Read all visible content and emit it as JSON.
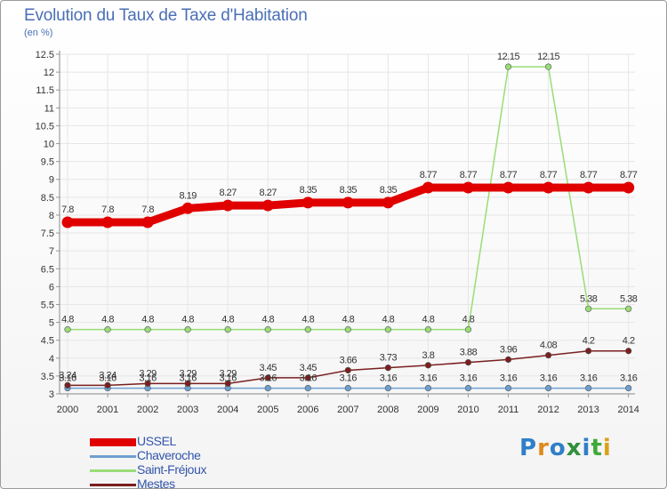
{
  "header": {
    "title": "Evolution du Taux de Taxe d'Habitation",
    "subtitle": "(en %)"
  },
  "colors": {
    "axis_text": "#333333",
    "grid": "#e6e6e6",
    "title": "#4a6fb5"
  },
  "logo": {
    "text": "Proxiti"
  },
  "chart_data": {
    "type": "line",
    "title": "Evolution du Taux de Taxe d'Habitation",
    "ylabel": "(en %)",
    "xlabel": "",
    "categories": [
      "2000",
      "2001",
      "2002",
      "2003",
      "2004",
      "2005",
      "2006",
      "2007",
      "2008",
      "2009",
      "2010",
      "2011",
      "2012",
      "2013",
      "2014"
    ],
    "y_ticks": [
      "3",
      "3.5",
      "4",
      "4.5",
      "5",
      "5.5",
      "6",
      "6.5",
      "7",
      "7.5",
      "8",
      "8.5",
      "9",
      "9.5",
      "10",
      "10.5",
      "11",
      "11.5",
      "12",
      "12.5"
    ],
    "ylim": [
      3,
      12.5
    ],
    "grid": true,
    "legend_position": "bottom-left",
    "series": [
      {
        "name": "USSEL",
        "color": "#e00000",
        "width": 9,
        "values": [
          7.8,
          7.8,
          7.8,
          8.19,
          8.27,
          8.27,
          8.35,
          8.35,
          8.35,
          8.77,
          8.77,
          8.77,
          8.77,
          8.77,
          8.77
        ],
        "labels": [
          "7.8",
          "7.8",
          "7.8",
          "8.19",
          "8.27",
          "8.27",
          "8.35",
          "8.35",
          "8.35",
          "8.77",
          "8.77",
          "8.77",
          "8.77",
          "8.77",
          "8.77"
        ]
      },
      {
        "name": "Chaveroche",
        "color": "#6f9fcf",
        "width": 1.5,
        "values": [
          3.16,
          3.16,
          3.16,
          3.16,
          3.16,
          3.16,
          3.16,
          3.16,
          3.16,
          3.16,
          3.16,
          3.16,
          3.16,
          3.16,
          3.16
        ],
        "labels": [
          "3.16",
          "3.16",
          "3.16",
          "3.16",
          "3.16",
          "3.16",
          "3.16",
          "3.16",
          "3.16",
          "3.16",
          "3.16",
          "3.16",
          "3.16",
          "3.16",
          "3.16"
        ]
      },
      {
        "name": "Saint-Fréjoux",
        "color": "#99dd77",
        "width": 1.5,
        "values": [
          4.8,
          4.8,
          4.8,
          4.8,
          4.8,
          4.8,
          4.8,
          4.8,
          4.8,
          4.8,
          4.8,
          12.15,
          12.15,
          5.38,
          5.38
        ],
        "labels": [
          "4.8",
          "4.8",
          "4.8",
          "4.8",
          "4.8",
          "4.8",
          "4.8",
          "4.8",
          "4.8",
          "4.8",
          "4.8",
          "12.15",
          "12.15",
          "5.38",
          "5.38"
        ]
      },
      {
        "name": "Mestes",
        "color": "#7a1f1f",
        "width": 1.5,
        "values": [
          3.24,
          3.24,
          3.29,
          3.29,
          3.29,
          3.45,
          3.45,
          3.66,
          3.73,
          3.8,
          3.88,
          3.96,
          4.08,
          4.2,
          4.2
        ],
        "labels": [
          "3.24",
          "3.24",
          "3.29",
          "3.29",
          "3.29",
          "3.45",
          "3.45",
          "3.66",
          "3.73",
          "3.8",
          "3.88",
          "3.96",
          "4.08",
          "4.2",
          "4.2"
        ]
      }
    ]
  }
}
